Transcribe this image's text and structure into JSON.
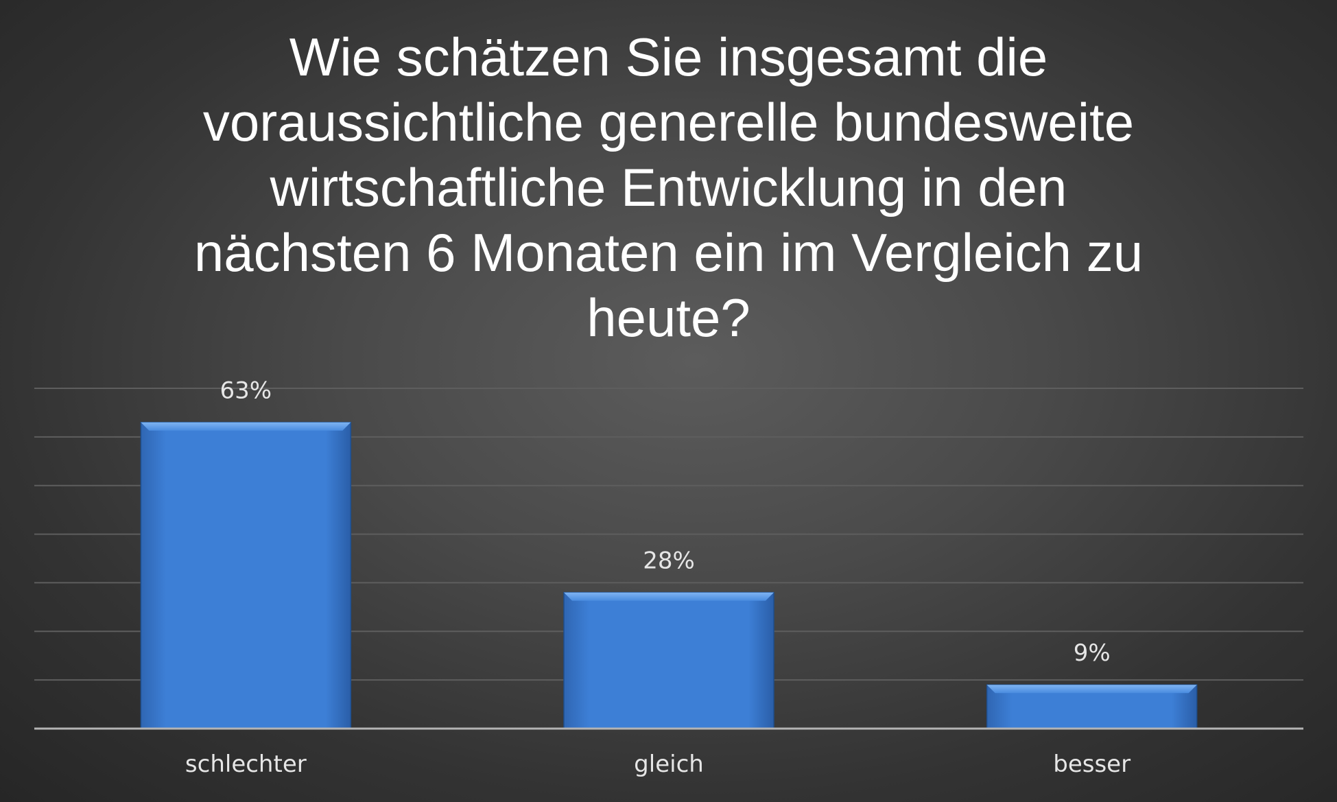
{
  "chart_data": {
    "type": "bar",
    "title": "Wie schätzen Sie insgesamt die voraussichtliche generelle bundesweite wirtschaftliche Entwicklung in den nächsten 6 Monaten ein im Vergleich zu heute?",
    "title_lines": [
      "Wie schätzen Sie insgesamt die",
      "voraussichtliche generelle bundesweite",
      "wirtschaftliche Entwicklung in den",
      "nächsten 6 Monaten ein im Vergleich zu",
      "heute?"
    ],
    "categories": [
      "schlechter",
      "gleich",
      "besser"
    ],
    "values": [
      63,
      28,
      9
    ],
    "value_labels": [
      "63%",
      "28%",
      "9%"
    ],
    "unit": "%",
    "ylim": [
      0,
      70
    ],
    "gridlines": [
      10,
      20,
      30,
      40,
      50,
      60,
      70
    ],
    "grid": true,
    "legend": false,
    "colors": {
      "bar": "#3d7fd6",
      "bar_highlight": "#6fa8ec",
      "bar_shadow": "#1e4e8c",
      "grid": "#5e5e5e",
      "axis": "#b4b4b4",
      "label": "#e6e6e6",
      "title": "#ffffff"
    }
  }
}
